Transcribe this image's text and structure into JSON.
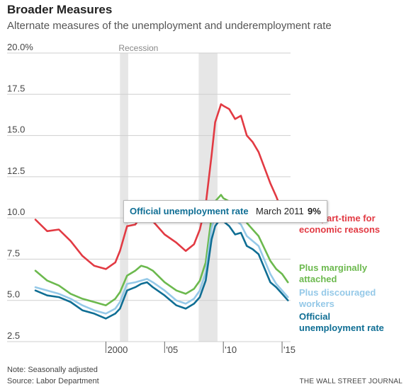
{
  "header": {
    "title": "Broader Measures",
    "subtitle": "Alternate measures of the unemployment and underemployment rate"
  },
  "tooltip": {
    "series": "Official unemployment rate",
    "date": "March 2011",
    "value": "9%"
  },
  "footer": {
    "note": "Note: Seasonally adjusted",
    "source_line": "Source: Labor Department",
    "publisher": "THE WALL STREET JOURNAL"
  },
  "colors": {
    "red": "#e23a43",
    "green": "#6cb94e",
    "lightblue": "#95c9e8",
    "darkblue": "#0f6e94",
    "recession": "#e6e6e6"
  },
  "chart_data": {
    "type": "line",
    "title": "Broader Measures",
    "subtitle": "Alternate measures of the unemployment and underemployment rate",
    "ylim": [
      2.5,
      20.0
    ],
    "y_ticks": [
      "20.0%",
      "17.5",
      "15.0",
      "12.5",
      "10.0",
      "7.5",
      "5.0",
      "2.5"
    ],
    "y_tick_values": [
      20.0,
      17.5,
      15.0,
      12.5,
      10.0,
      7.5,
      5.0,
      2.5
    ],
    "xlim": [
      1994.0,
      2015.6
    ],
    "x_ticks": [
      {
        "label": "2000",
        "value": 2000
      },
      {
        "label": "'05",
        "value": 2005
      },
      {
        "label": "'10",
        "value": 2010
      },
      {
        "label": "'15",
        "value": 2015
      }
    ],
    "grid": true,
    "recessions": [
      {
        "label": "Recession",
        "start": 2001.2,
        "end": 2001.9
      },
      {
        "label": "",
        "start": 2007.9,
        "end": 2009.5
      }
    ],
    "x": [
      1994.0,
      1995.0,
      1996.0,
      1997.0,
      1998.0,
      1999.0,
      2000.0,
      2000.8,
      2001.2,
      2001.8,
      2002.5,
      2003.0,
      2003.5,
      2004.0,
      2005.0,
      2006.0,
      2006.8,
      2007.5,
      2008.0,
      2008.5,
      2009.0,
      2009.3,
      2009.8,
      2010.0,
      2010.5,
      2011.0,
      2011.5,
      2012.0,
      2012.5,
      2013.0,
      2014.0,
      2014.5,
      2015.0,
      2015.5
    ],
    "series": [
      {
        "name": "Plus part-time for economic reasons",
        "color": "#e23a43",
        "values": [
          9.9,
          9.2,
          9.3,
          8.6,
          7.7,
          7.1,
          6.9,
          7.3,
          8.0,
          9.5,
          9.6,
          10.1,
          10.0,
          9.8,
          9.0,
          8.5,
          8.0,
          8.4,
          9.3,
          10.8,
          13.8,
          15.8,
          16.9,
          16.8,
          16.6,
          16.0,
          16.2,
          15.0,
          14.6,
          14.0,
          12.1,
          11.3,
          10.4,
          10.0
        ]
      },
      {
        "name": "Plus marginally attached",
        "color": "#6cb94e",
        "values": [
          6.8,
          6.2,
          5.9,
          5.4,
          5.1,
          4.9,
          4.7,
          5.1,
          5.5,
          6.5,
          6.8,
          7.1,
          7.0,
          6.8,
          6.1,
          5.6,
          5.4,
          5.7,
          6.2,
          7.3,
          10.1,
          11.0,
          11.4,
          11.2,
          11.0,
          10.9,
          10.5,
          9.7,
          9.3,
          8.9,
          7.4,
          6.9,
          6.6,
          6.1
        ]
      },
      {
        "name": "Plus discouraged workers",
        "color": "#95c9e8",
        "values": [
          5.8,
          5.6,
          5.4,
          5.1,
          4.7,
          4.4,
          4.2,
          4.5,
          4.9,
          6.0,
          6.1,
          6.2,
          6.3,
          6.1,
          5.6,
          5.0,
          4.8,
          5.1,
          5.6,
          6.7,
          9.4,
          10.1,
          10.5,
          10.3,
          10.1,
          9.9,
          9.6,
          8.9,
          8.6,
          8.3,
          6.6,
          6.0,
          5.6,
          5.2
        ]
      },
      {
        "name": "Official unemployment rate",
        "color": "#0f6e94",
        "values": [
          5.6,
          5.3,
          5.2,
          4.9,
          4.4,
          4.2,
          3.9,
          4.2,
          4.5,
          5.6,
          5.8,
          6.0,
          6.1,
          5.8,
          5.3,
          4.7,
          4.5,
          4.8,
          5.2,
          6.2,
          8.7,
          9.5,
          10.0,
          9.8,
          9.5,
          9.0,
          9.1,
          8.3,
          8.1,
          7.8,
          6.1,
          5.8,
          5.4,
          5.0
        ]
      }
    ],
    "labels": [
      {
        "series": 0,
        "lines": [
          "Plus part-time for",
          "economic reasons"
        ]
      },
      {
        "series": 1,
        "lines": [
          "Plus marginally",
          "attached"
        ]
      },
      {
        "series": 2,
        "lines": [
          "Plus discouraged",
          "workers"
        ]
      },
      {
        "series": 3,
        "lines": [
          "Official",
          "unemployment rate"
        ]
      }
    ]
  }
}
